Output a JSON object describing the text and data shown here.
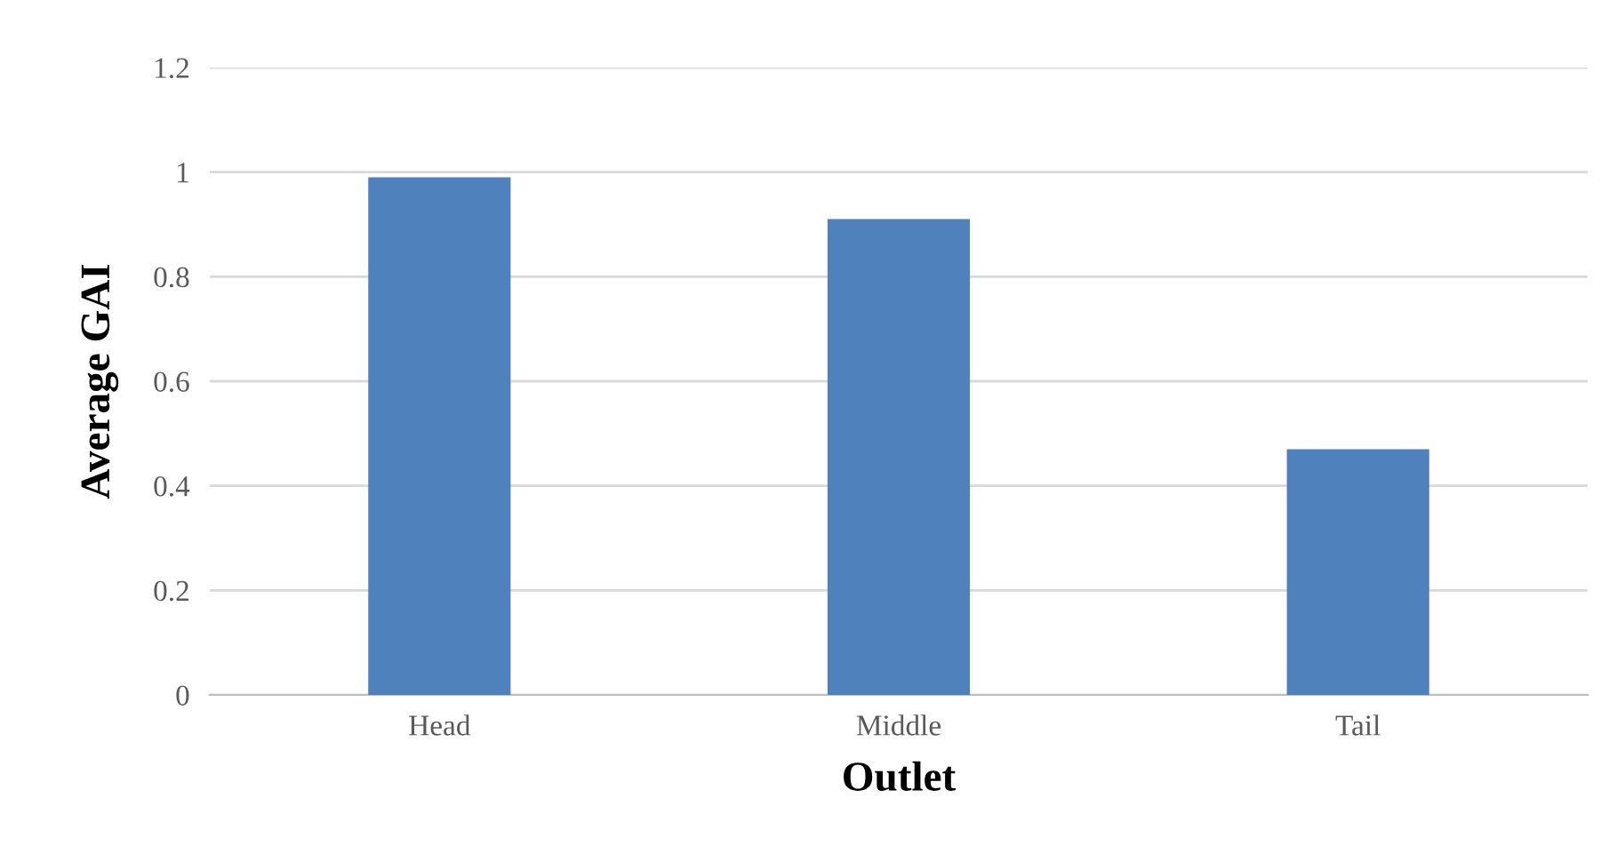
{
  "chart_data": {
    "type": "bar",
    "xlabel": "Outlet",
    "ylabel": "Average GAI",
    "categories": [
      "Head",
      "Middle",
      "Tail"
    ],
    "values": [
      0.99,
      0.91,
      0.47
    ],
    "color": "#4f81bd",
    "ylim": [
      0,
      1.2
    ],
    "yticks": [
      0,
      0.2,
      0.4,
      0.6,
      0.8,
      1,
      1.2
    ],
    "grid": "y",
    "legend": false
  }
}
